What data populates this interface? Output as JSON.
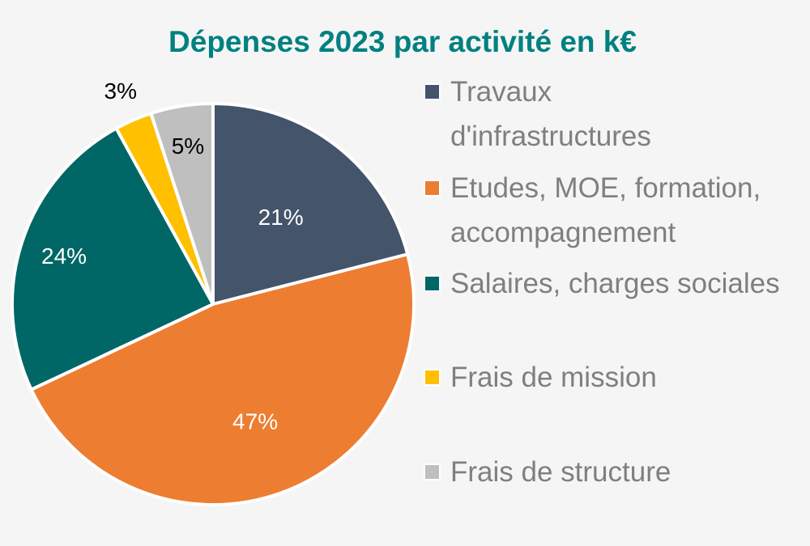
{
  "chart_data": {
    "type": "pie",
    "title": "Dépenses 2023 par activité en k€",
    "legend_position": "right",
    "slices": [
      {
        "label": "Travaux d'infrastructures",
        "legend_lines": [
          "Travaux",
          "d'infrastructures"
        ],
        "value": 21,
        "value_label": "21%",
        "color": "#44546a",
        "label_color": "#ffffff"
      },
      {
        "label": "Etudes, MOE, formation, accompagnement",
        "legend_lines": [
          "Etudes, MOE, formation,",
          "accompagnement"
        ],
        "value": 47,
        "value_label": "47%",
        "color": "#ed7d31",
        "label_color": "#ffffff"
      },
      {
        "label": "Salaires, charges sociales",
        "legend_lines": [
          "Salaires, charges sociales"
        ],
        "value": 24,
        "value_label": "24%",
        "color": "#006666",
        "label_color": "#ffffff"
      },
      {
        "label": "Frais de mission",
        "legend_lines": [
          "Frais de mission"
        ],
        "value": 3,
        "value_label": "3%",
        "color": "#ffc000",
        "label_color": "#000000"
      },
      {
        "label": "Frais de structure",
        "legend_lines": [
          "Frais de structure"
        ],
        "value": 5,
        "value_label": "5%",
        "color": "#bfbfbf",
        "label_color": "#000000"
      }
    ]
  },
  "colors": {
    "title": "#008080",
    "legend_text": "#7f7f7f",
    "background": "#f5f5f5",
    "slice_border": "#ffffff"
  }
}
